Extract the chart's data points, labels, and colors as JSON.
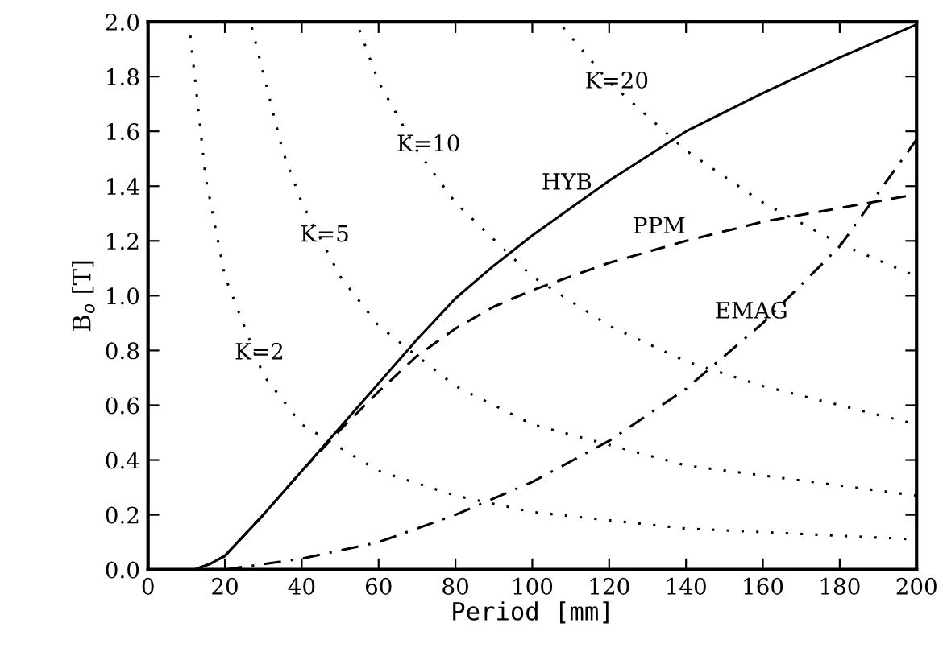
{
  "chart_data": {
    "type": "line",
    "xlabel": "Period [mm]",
    "ylabel": "B$_{o}$ [T]",
    "xlim": [
      0,
      200
    ],
    "xticks": [
      0,
      20,
      40,
      60,
      80,
      100,
      120,
      140,
      160,
      180,
      200
    ],
    "ylim": [
      0,
      2.0
    ],
    "yticks": [
      {
        "value": 0,
        "label": "0.0"
      },
      0.2,
      0.4,
      0.6,
      0.8,
      {
        "value": 1,
        "label": "1.0"
      },
      1.2,
      1.4,
      1.6,
      1.8,
      {
        "value": 2,
        "label": "2.0"
      }
    ],
    "grid": false,
    "legend": false,
    "marker": "none",
    "series": [
      {
        "name": "HYB",
        "color": "#000000",
        "line_style": "solid",
        "x": [
          0,
          12,
          16,
          20,
          30,
          40,
          50,
          60,
          70,
          80,
          90,
          100,
          120,
          140,
          160,
          180,
          200
        ],
        "values": [
          0,
          0,
          0.02,
          0.05,
          0.2,
          0.36,
          0.52,
          0.68,
          0.84,
          0.99,
          1.11,
          1.22,
          1.42,
          1.6,
          1.74,
          1.87,
          1.99
        ]
      },
      {
        "name": "PPM",
        "color": "#000000",
        "line_style": "dashed",
        "x": [
          0,
          12,
          16,
          20,
          30,
          40,
          50,
          60,
          70,
          80,
          90,
          100,
          120,
          140,
          160,
          180,
          200
        ],
        "values": [
          0,
          0,
          0.02,
          0.05,
          0.2,
          0.36,
          0.51,
          0.65,
          0.78,
          0.88,
          0.96,
          1.02,
          1.12,
          1.2,
          1.27,
          1.32,
          1.37
        ]
      },
      {
        "name": "EMAG",
        "color": "#000000",
        "line_style": "dashdot",
        "x": [
          20,
          40,
          60,
          80,
          100,
          120,
          140,
          160,
          180,
          200
        ],
        "values": [
          0,
          0.04,
          0.1,
          0.2,
          0.32,
          0.47,
          0.66,
          0.9,
          1.18,
          1.57
        ]
      },
      {
        "name": "K=2",
        "color": "#000000",
        "line_style": "dotted",
        "x": [
          11,
          15,
          20,
          30,
          40,
          60,
          80,
          100,
          140,
          200
        ],
        "values": [
          1.95,
          1.43,
          1.07,
          0.71,
          0.53,
          0.36,
          0.27,
          0.21,
          0.15,
          0.11
        ]
      },
      {
        "name": "K=5",
        "color": "#000000",
        "line_style": "dotted",
        "x": [
          27,
          35,
          40,
          50,
          60,
          80,
          100,
          140,
          200
        ],
        "values": [
          1.98,
          1.53,
          1.34,
          1.07,
          0.89,
          0.67,
          0.53,
          0.38,
          0.27
        ]
      },
      {
        "name": "K=10",
        "color": "#000000",
        "line_style": "dotted",
        "x": [
          55,
          60,
          70,
          80,
          100,
          120,
          140,
          160,
          200
        ],
        "values": [
          1.97,
          1.78,
          1.53,
          1.34,
          1.07,
          0.89,
          0.76,
          0.67,
          0.53
        ]
      },
      {
        "name": "K=20",
        "color": "#000000",
        "line_style": "dotted",
        "x": [
          108,
          120,
          140,
          160,
          180,
          200
        ],
        "values": [
          1.98,
          1.78,
          1.53,
          1.34,
          1.19,
          1.07
        ]
      }
    ]
  }
}
